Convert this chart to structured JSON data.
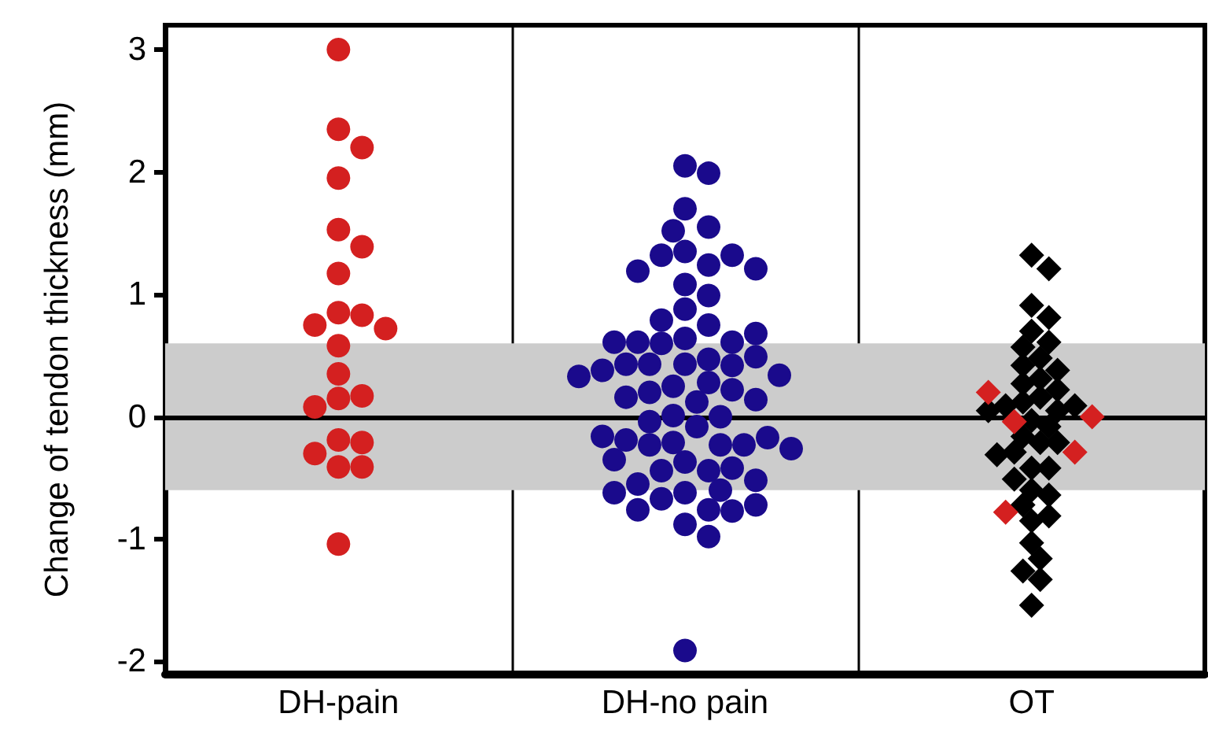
{
  "chart_data": {
    "type": "scatter",
    "ylabel": "Change of tendon thickness (mm)",
    "categories": [
      "DH-pain",
      "DH-no pain",
      "OT"
    ],
    "ylim": [
      -2.1,
      3.2
    ],
    "yticks": [
      -2,
      -1,
      0,
      1,
      2,
      3
    ],
    "grid": "x",
    "legend": false,
    "ref_lines": [
      {
        "axis": "y",
        "value": 0,
        "color": "#000000"
      }
    ],
    "bands": [
      {
        "axis": "y",
        "from": -0.6,
        "to": 0.6,
        "color": "#cccccc"
      }
    ],
    "series": [
      {
        "color": "#d42020",
        "marker": "circle",
        "x": [
          "DH-pain",
          "DH-pain",
          "DH-pain",
          "DH-pain",
          "DH-pain",
          "DH-pain",
          "DH-pain",
          "DH-pain",
          "DH-pain",
          "DH-pain",
          "DH-pain",
          "DH-pain",
          "DH-pain",
          "DH-pain",
          "DH-pain",
          "DH-pain",
          "DH-pain",
          "DH-pain",
          "DH-pain",
          "DH-pain",
          "DH-pain",
          "DH-pain"
        ],
        "values": [
          3.0,
          2.35,
          2.2,
          1.95,
          1.53,
          1.39,
          1.17,
          0.85,
          0.83,
          0.75,
          0.72,
          0.58,
          0.35,
          0.15,
          0.17,
          0.08,
          -0.19,
          -0.21,
          -0.3,
          -0.41,
          -0.41,
          -1.04
        ]
      },
      {
        "color": "#1a0a8c",
        "marker": "circle",
        "x": [
          "DH-no pain",
          "DH-no pain",
          "DH-no pain",
          "DH-no pain",
          "DH-no pain",
          "DH-no pain",
          "DH-no pain",
          "DH-no pain",
          "DH-no pain",
          "DH-no pain",
          "DH-no pain",
          "DH-no pain",
          "DH-no pain",
          "DH-no pain",
          "DH-no pain",
          "DH-no pain",
          "DH-no pain",
          "DH-no pain",
          "DH-no pain",
          "DH-no pain",
          "DH-no pain",
          "DH-no pain",
          "DH-no pain",
          "DH-no pain",
          "DH-no pain",
          "DH-no pain",
          "DH-no pain",
          "DH-no pain",
          "DH-no pain",
          "DH-no pain",
          "DH-no pain",
          "DH-no pain",
          "DH-no pain",
          "DH-no pain",
          "DH-no pain",
          "DH-no pain",
          "DH-no pain",
          "DH-no pain",
          "DH-no pain",
          "DH-no pain",
          "DH-no pain",
          "DH-no pain",
          "DH-no pain",
          "DH-no pain",
          "DH-no pain",
          "DH-no pain",
          "DH-no pain",
          "DH-no pain",
          "DH-no pain",
          "DH-no pain",
          "DH-no pain",
          "DH-no pain",
          "DH-no pain",
          "DH-no pain",
          "DH-no pain",
          "DH-no pain",
          "DH-no pain",
          "DH-no pain",
          "DH-no pain",
          "DH-no pain",
          "DH-no pain",
          "DH-no pain",
          "DH-no pain",
          "DH-no pain",
          "DH-no pain",
          "DH-no pain",
          "DH-no pain",
          "DH-no pain"
        ],
        "values": [
          2.05,
          1.99,
          1.7,
          1.55,
          1.52,
          1.35,
          1.24,
          1.32,
          1.32,
          1.19,
          1.21,
          1.08,
          0.99,
          0.88,
          0.75,
          0.79,
          0.64,
          0.6,
          0.61,
          0.61,
          0.68,
          0.61,
          0.43,
          0.47,
          0.43,
          0.49,
          0.43,
          0.42,
          0.38,
          0.34,
          0.33,
          0.28,
          0.25,
          0.2,
          0.22,
          0.16,
          0.14,
          0.12,
          0.01,
          0.0,
          -0.04,
          -0.08,
          -0.21,
          -0.23,
          -0.23,
          -0.23,
          -0.19,
          -0.17,
          -0.16,
          -0.26,
          -0.37,
          -0.35,
          -0.44,
          -0.44,
          -0.42,
          -0.55,
          -0.52,
          -0.62,
          -0.6,
          -0.62,
          -0.67,
          -0.76,
          -0.77,
          -0.76,
          -0.72,
          -0.88,
          -0.98,
          -1.91
        ]
      },
      {
        "color": "#000000",
        "marker": "diamond",
        "x": [
          "OT",
          "OT",
          "OT",
          "OT",
          "OT",
          "OT",
          "OT",
          "OT",
          "OT",
          "OT",
          "OT",
          "OT",
          "OT",
          "OT",
          "OT",
          "OT",
          "OT",
          "OT",
          "OT",
          "OT",
          "OT",
          "OT",
          "OT",
          "OT",
          "OT",
          "OT",
          "OT",
          "OT",
          "OT",
          "OT",
          "OT",
          "OT",
          "OT",
          "OT",
          "OT",
          "OT",
          "OT",
          "OT",
          "OT"
        ],
        "values": [
          1.32,
          1.21,
          0.91,
          0.81,
          0.7,
          0.61,
          0.57,
          0.48,
          0.42,
          0.38,
          0.31,
          0.27,
          0.16,
          0.22,
          0.12,
          0.05,
          0.09,
          0.09,
          0.05,
          -0.03,
          -0.08,
          -0.16,
          -0.21,
          -0.21,
          -0.29,
          -0.31,
          -0.42,
          -0.42,
          -0.51,
          -0.6,
          -0.64,
          -0.72,
          -0.85,
          -0.81,
          -1.03,
          -1.16,
          -1.26,
          -1.33,
          -1.54
        ]
      },
      {
        "color": "#d42020",
        "marker": "diamond",
        "x": [
          "OT",
          "OT",
          "OT",
          "OT",
          "OT"
        ],
        "values": [
          0.2,
          0.0,
          -0.04,
          -0.29,
          -0.78
        ]
      }
    ]
  }
}
